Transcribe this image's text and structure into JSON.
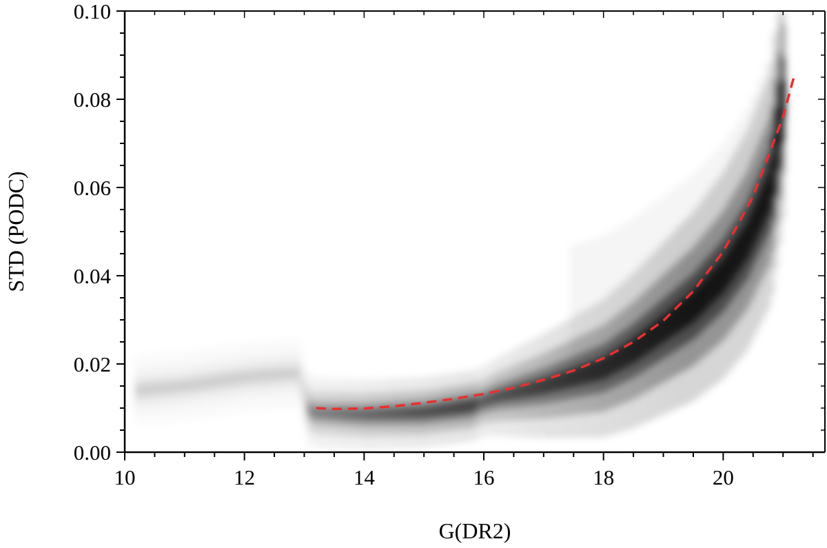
{
  "chart_data": {
    "type": "heatmap",
    "title": "",
    "xlabel": "G(DR2)",
    "ylabel": "STD (PODC)",
    "xlim": [
      10,
      21.7
    ],
    "ylim": [
      0.0,
      0.1
    ],
    "xticks": [
      10,
      12,
      14,
      16,
      18,
      20
    ],
    "xtick_labels": [
      "10",
      "12",
      "14",
      "16",
      "18",
      "20"
    ],
    "yticks": [
      0.0,
      0.02,
      0.04,
      0.06,
      0.08,
      0.1
    ],
    "ytick_labels": [
      "0.00",
      "0.02",
      "0.04",
      "0.06",
      "0.08",
      "0.10"
    ],
    "grid": false,
    "density_colormap": "greys",
    "density_ridge": {
      "x": [
        10.2,
        11.0,
        12.0,
        12.9,
        13.1,
        14.0,
        15.0,
        15.8,
        16.2,
        17.0,
        18.0,
        18.5,
        19.0,
        19.5,
        20.0,
        20.4,
        20.8,
        21.0
      ],
      "y": [
        0.014,
        0.015,
        0.017,
        0.018,
        0.009,
        0.0085,
        0.009,
        0.0105,
        0.0125,
        0.015,
        0.019,
        0.023,
        0.028,
        0.033,
        0.04,
        0.048,
        0.06,
        0.08
      ]
    },
    "series": [
      {
        "style": "dashed",
        "color": "#e8302f",
        "x": [
          13.2,
          13.5,
          14.0,
          14.5,
          15.0,
          15.5,
          16.0,
          16.5,
          17.0,
          17.5,
          18.0,
          18.5,
          19.0,
          19.5,
          20.0,
          20.5,
          21.0,
          21.2
        ],
        "y": [
          0.01,
          0.0098,
          0.0099,
          0.0104,
          0.0112,
          0.0121,
          0.0132,
          0.0146,
          0.0164,
          0.0185,
          0.0213,
          0.025,
          0.0298,
          0.0365,
          0.0455,
          0.058,
          0.076,
          0.086
        ]
      }
    ]
  }
}
